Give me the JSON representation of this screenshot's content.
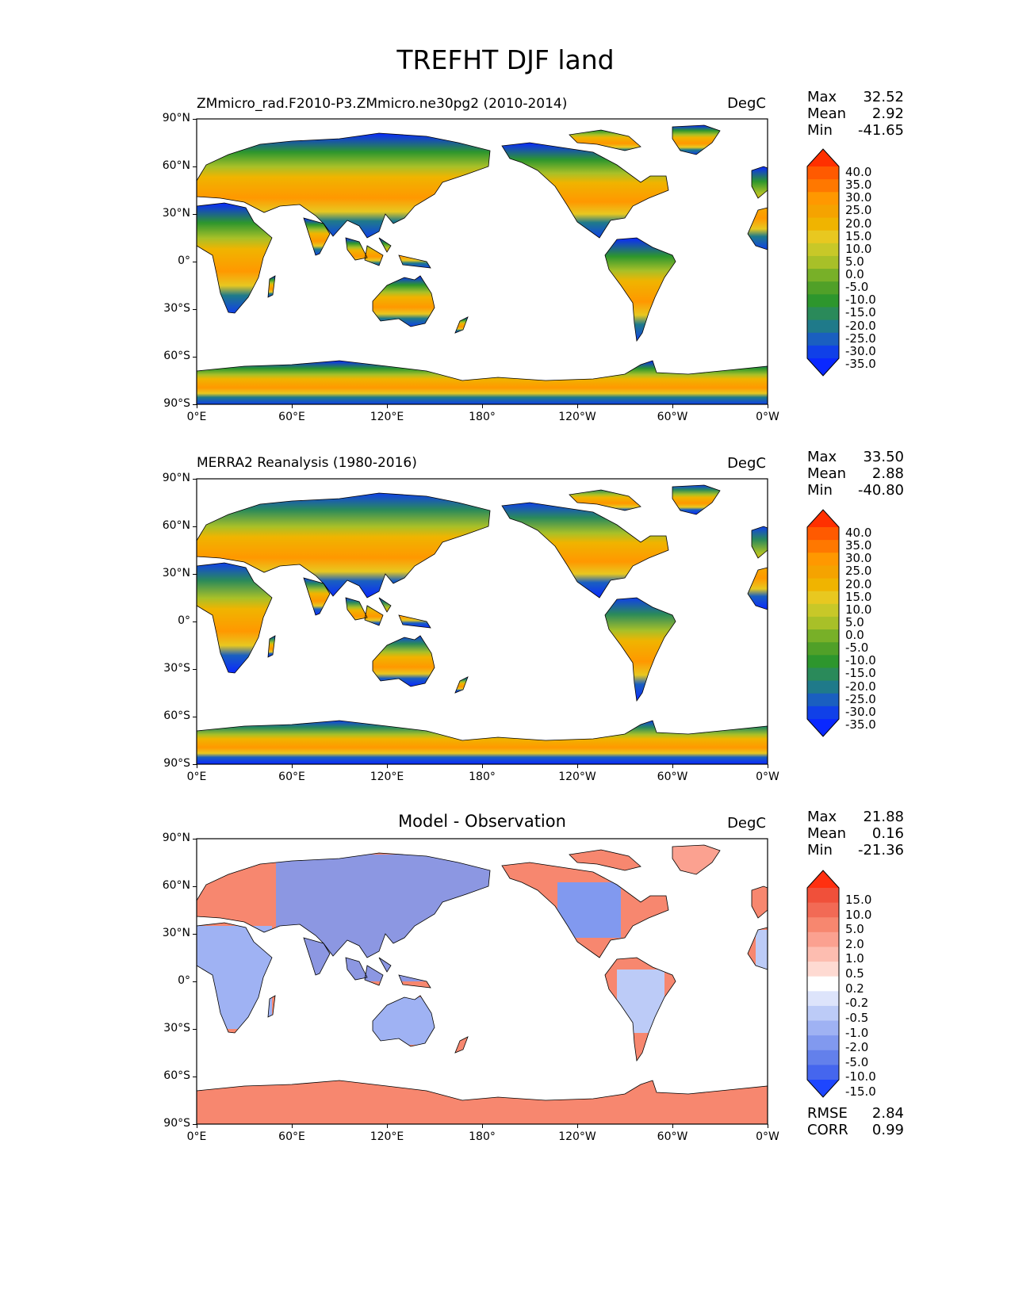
{
  "page_title": "TREFHT DJF land",
  "x_ticks": [
    "0°E",
    "60°E",
    "120°E",
    "180°",
    "120°W",
    "60°W",
    "0°W"
  ],
  "y_ticks": [
    "90°N",
    "60°N",
    "30°N",
    "0°",
    "30°S",
    "60°S",
    "90°S"
  ],
  "panels": [
    {
      "title": "ZMmicro_rad.F2010-P3.ZMmicro.ne30pg2 (2010-2014)",
      "units": "DegC",
      "stats": {
        "max_label": "Max",
        "max": "32.52",
        "mean_label": "Mean",
        "mean": "2.92",
        "min_label": "Min",
        "min": "-41.65"
      },
      "colorbar": {
        "labels": [
          "40.0",
          "35.0",
          "30.0",
          "25.0",
          "20.0",
          "15.0",
          "10.0",
          "5.0",
          "0.0",
          "-5.0",
          "-10.0",
          "-15.0",
          "-20.0",
          "-25.0",
          "-30.0",
          "-35.0"
        ],
        "colors": [
          "#ff3000",
          "#ff5a00",
          "#ff7800",
          "#ff9800",
          "#f5a300",
          "#f0b400",
          "#e8c820",
          "#c8c828",
          "#a8c028",
          "#78b028",
          "#50a028",
          "#2d962d",
          "#2a8a5a",
          "#1f7a8a",
          "#1a5fc0",
          "#1040e8",
          "#0a28ff"
        ]
      }
    },
    {
      "title": "MERRA2 Reanalysis (1980-2016)",
      "units": "DegC",
      "stats": {
        "max_label": "Max",
        "max": "33.50",
        "mean_label": "Mean",
        "mean": "2.88",
        "min_label": "Min",
        "min": "-40.80"
      },
      "colorbar": {
        "labels": [
          "40.0",
          "35.0",
          "30.0",
          "25.0",
          "20.0",
          "15.0",
          "10.0",
          "5.0",
          "0.0",
          "-5.0",
          "-10.0",
          "-15.0",
          "-20.0",
          "-25.0",
          "-30.0",
          "-35.0"
        ],
        "colors": [
          "#ff3000",
          "#ff5a00",
          "#ff7800",
          "#ff9800",
          "#f5a300",
          "#f0b400",
          "#e8c820",
          "#c8c828",
          "#a8c028",
          "#78b028",
          "#50a028",
          "#2d962d",
          "#2a8a5a",
          "#1f7a8a",
          "#1a5fc0",
          "#1040e8",
          "#0a28ff"
        ]
      }
    },
    {
      "title": "Model - Observation",
      "units": "DegC",
      "stats": {
        "max_label": "Max",
        "max": "21.88",
        "mean_label": "Mean",
        "mean": "0.16",
        "min_label": "Min",
        "min": "-21.36"
      },
      "colorbar": {
        "labels": [
          "15.0",
          "10.0",
          "5.0",
          "2.0",
          "1.0",
          "0.5",
          "0.2",
          "-0.2",
          "-0.5",
          "-1.0",
          "-2.0",
          "-5.0",
          "-10.0",
          "-15.0"
        ],
        "colors": [
          "#ff3010",
          "#f0503a",
          "#f26a55",
          "#f7876f",
          "#fba190",
          "#fdbdb0",
          "#fedad2",
          "#ffffff",
          "#dde4fb",
          "#bccbf7",
          "#9fb2f3",
          "#8199ef",
          "#6380eb",
          "#4566ee",
          "#1e46ff"
        ]
      },
      "error_stats": {
        "rmse_label": "RMSE",
        "rmse": "2.84",
        "corr_label": "CORR",
        "corr": "0.99"
      }
    }
  ],
  "chart_data": {
    "type": "map",
    "title": "TREFHT DJF land",
    "variable": "TREFHT",
    "season": "DJF",
    "units": "DegC",
    "projection": "equirectangular",
    "x_range": [
      0,
      360
    ],
    "y_range": [
      -90,
      90
    ],
    "maps": [
      {
        "name": "ZMmicro_rad.F2010-P3.ZMmicro.ne30pg2 (2010-2014)",
        "max": 32.52,
        "mean": 2.92,
        "min": -41.65
      },
      {
        "name": "MERRA2 Reanalysis (1980-2016)",
        "max": 33.5,
        "mean": 2.88,
        "min": -40.8
      },
      {
        "name": "Model - Observation",
        "max": 21.88,
        "mean": 0.16,
        "min": -21.36,
        "rmse": 2.84,
        "corr": 0.99
      }
    ]
  }
}
